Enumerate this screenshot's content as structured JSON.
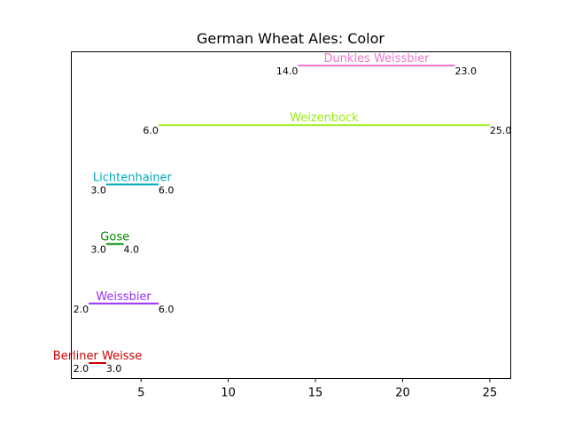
{
  "chart_data": {
    "type": "range",
    "title": "German Wheat Ales: Color",
    "xlabel": "",
    "ylabel": "",
    "xlim": [
      1,
      26.2
    ],
    "xticks": [
      5,
      10,
      15,
      20,
      25
    ],
    "grid": false,
    "legend": "none",
    "series": [
      {
        "name": "Berliner Weisse",
        "min": 2.0,
        "max": 3.0,
        "min_label": "2.0",
        "max_label": "3.0",
        "color": "#cc0000"
      },
      {
        "name": "Weissbier",
        "min": 2.0,
        "max": 6.0,
        "min_label": "2.0",
        "max_label": "6.0",
        "color": "#9b30ff"
      },
      {
        "name": "Gose",
        "min": 3.0,
        "max": 4.0,
        "min_label": "3.0",
        "max_label": "4.0",
        "color": "#008b00"
      },
      {
        "name": "Lichtenhainer",
        "min": 3.0,
        "max": 6.0,
        "min_label": "3.0",
        "max_label": "6.0",
        "color": "#00aabb"
      },
      {
        "name": "Weizenbock",
        "min": 6.0,
        "max": 25.0,
        "min_label": "6.0",
        "max_label": "25.0",
        "color": "#99ee11"
      },
      {
        "name": "Dunkles Weissbier",
        "min": 14.0,
        "max": 23.0,
        "min_label": "14.0",
        "max_label": "23.0",
        "color": "#ee77cc"
      }
    ]
  }
}
